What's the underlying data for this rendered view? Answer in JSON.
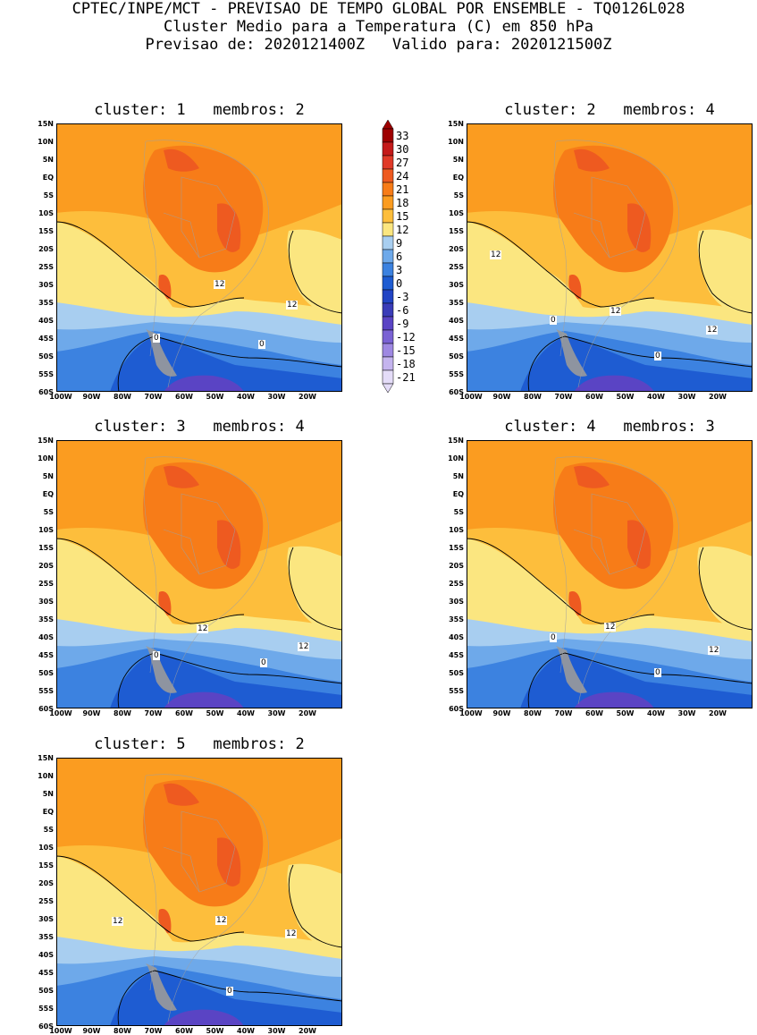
{
  "header": {
    "line1": "CPTEC/INPE/MCT - PREVISAO DE TEMPO GLOBAL POR ENSEMBLE - TQ0126L028",
    "line2": "Cluster Medio para a Temperatura (C) em 850 hPa",
    "line3": "Previsao de: 2020121400Z   Valido para: 2020121500Z"
  },
  "axes": {
    "lat_labels": [
      "15N",
      "10N",
      "5N",
      "EQ",
      "5S",
      "10S",
      "15S",
      "20S",
      "25S",
      "30S",
      "35S",
      "40S",
      "45S",
      "50S",
      "55S",
      "60S"
    ],
    "lon_labels": [
      "100W",
      "90W",
      "80W",
      "70W",
      "60W",
      "50W",
      "40W",
      "30W",
      "20W"
    ]
  },
  "colorbar": {
    "labels": [
      "33",
      "30",
      "27",
      "24",
      "21",
      "18",
      "15",
      "12",
      "9",
      "6",
      "3",
      "0",
      "-3",
      "-6",
      "-9",
      "-12",
      "-15",
      "-18",
      "-21"
    ],
    "colors": [
      "#9e0000",
      "#c41a1a",
      "#e03a28",
      "#ee5a20",
      "#f77c18",
      "#fb9c20",
      "#fdbe3c",
      "#fbe680",
      "#a8cef0",
      "#6ea9ea",
      "#3c82e0",
      "#1e5cd2",
      "#2244c4",
      "#3a3cb8",
      "#5a44c4",
      "#7a62d4",
      "#9e88e2",
      "#c4b4ee",
      "#e4dcf8"
    ]
  },
  "panels": [
    {
      "title": "cluster: 1   membros: 2",
      "labels": [
        "12",
        "12",
        "12",
        "0",
        "0"
      ]
    },
    {
      "title": "cluster: 2   membros: 4",
      "labels": [
        "12",
        "12",
        "12",
        "0",
        "0"
      ]
    },
    {
      "title": "cluster: 3   membros: 4",
      "labels": [
        "12",
        "12",
        "0",
        "0"
      ]
    },
    {
      "title": "cluster: 4   membros: 3",
      "labels": [
        "12",
        "12",
        "0",
        "0"
      ]
    },
    {
      "title": "cluster: 5   membros: 2",
      "labels": [
        "12",
        "12",
        "12",
        "0"
      ]
    }
  ]
}
